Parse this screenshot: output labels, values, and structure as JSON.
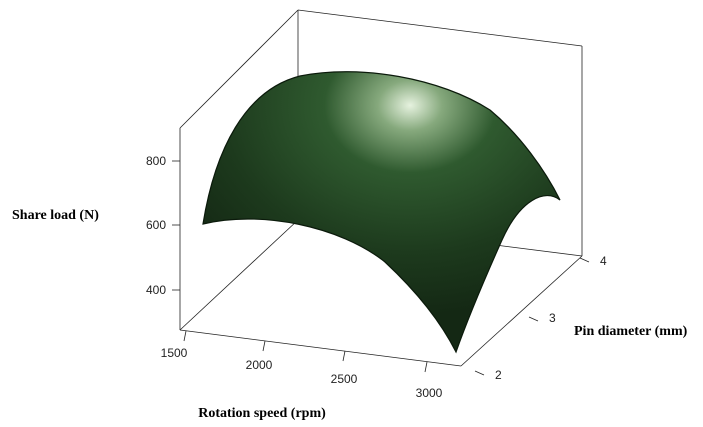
{
  "chart_data": {
    "type": "surface",
    "title": "",
    "zlabel": "Share load (N)",
    "xlabel": "Rotation speed (rpm)",
    "ylabel": "Pin diameter (mm)",
    "x_ticks": [
      "1500",
      "2000",
      "2500",
      "3000"
    ],
    "y_ticks": [
      "2",
      "3",
      "4"
    ],
    "z_ticks": [
      "400",
      "600",
      "800"
    ],
    "xlim": [
      1500,
      3000
    ],
    "ylim": [
      2,
      4
    ],
    "zlim": [
      270,
      880
    ],
    "surface_color": "#1f4a1f",
    "grid": false,
    "corner_points": [
      {
        "x": 1500,
        "y": 2,
        "z": 600
      },
      {
        "x": 3000,
        "y": 2,
        "z": 270
      },
      {
        "x": 1500,
        "y": 4,
        "z": 790
      },
      {
        "x": 3000,
        "y": 4,
        "z": 690
      }
    ],
    "peak": {
      "x": 2250,
      "y": 3.5,
      "z": 860
    }
  }
}
